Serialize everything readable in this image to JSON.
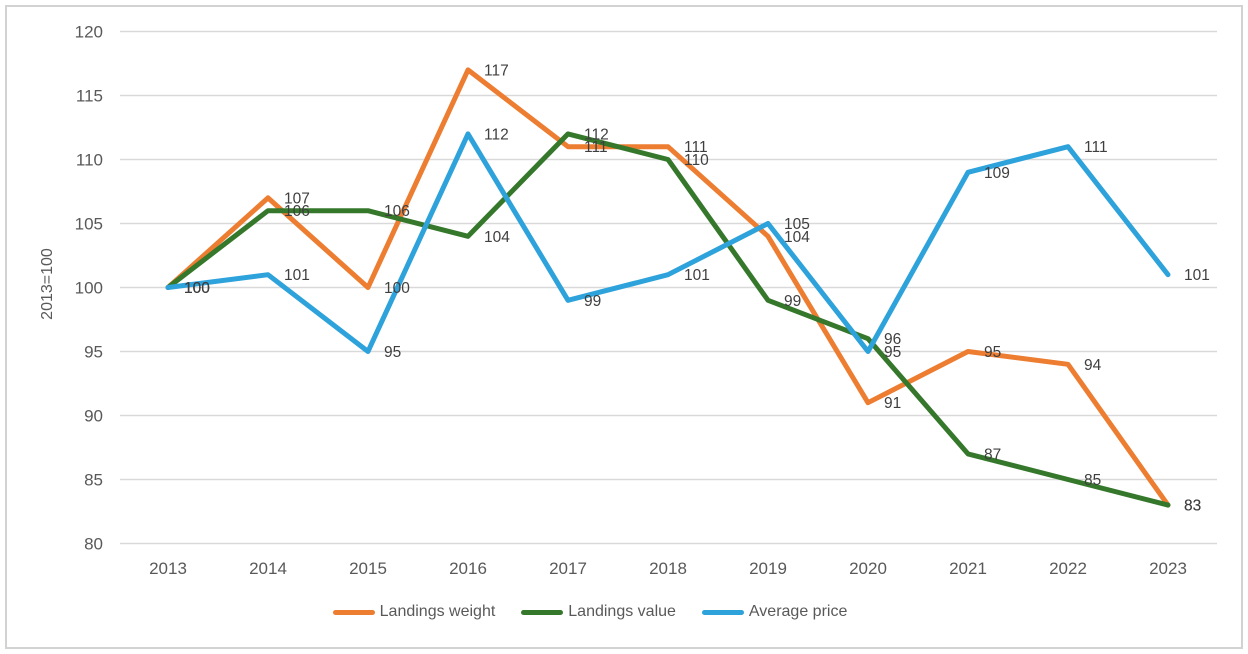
{
  "chart_data": {
    "type": "line",
    "title": "",
    "xlabel": "",
    "ylabel": "2013=100",
    "categories": [
      "2013",
      "2014",
      "2015",
      "2016",
      "2017",
      "2018",
      "2019",
      "2020",
      "2021",
      "2022",
      "2023"
    ],
    "ylim": [
      80,
      120
    ],
    "ytick_step": 5,
    "yticks": [
      80,
      85,
      90,
      95,
      100,
      105,
      110,
      115,
      120
    ],
    "grid": true,
    "data_labels": true,
    "legend_position": "bottom",
    "series": [
      {
        "name": "Landings weight",
        "color": "#ED7D31",
        "values": [
          100,
          107,
          100,
          117,
          111,
          111,
          104,
          91,
          95,
          94,
          83
        ]
      },
      {
        "name": "Landings value",
        "color": "#35782C",
        "values": [
          100,
          106,
          106,
          104,
          112,
          110,
          99,
          96,
          87,
          85,
          83
        ]
      },
      {
        "name": "Average price",
        "color": "#2DA2DB",
        "values": [
          100,
          101,
          95,
          112,
          99,
          101,
          105,
          95,
          109,
          111,
          101
        ]
      }
    ]
  },
  "style_colors": {
    "gridline": "#D9D9D9",
    "axis_text": "#595959",
    "data_label_text": "#3F3F3F",
    "frame_border": "#D2D2D2"
  }
}
